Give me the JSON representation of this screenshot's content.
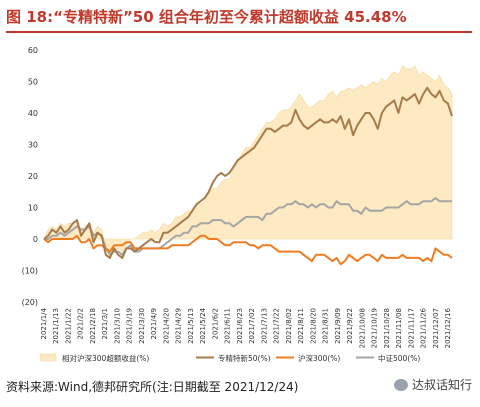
{
  "title": "图 18:“专精特新”50 组合年初至今累计超额收益 45.48%",
  "source": "资料来源:Wind,德邦研究所(注:日期截至 2021/12/24)",
  "watermark": "达叔话知行",
  "chart_data": {
    "type": "area",
    "title": "图 18:“专精特新”50 组合年初至今累计超额收益 45.48%",
    "xlabel": "",
    "ylabel": "",
    "ylim": [
      -20,
      60
    ],
    "y_ticks": [
      60,
      50,
      40,
      30,
      20,
      10,
      0,
      -10,
      -20
    ],
    "y_tick_labels": [
      "60",
      "50",
      "40",
      "30",
      "20",
      "10",
      "0",
      "(10)",
      "(20)"
    ],
    "x_tick_labels": [
      "2021/1/4",
      "2021/1/13",
      "2021/1/22",
      "2021/2/2",
      "2021/2/18",
      "2021/3/1",
      "2021/3/10",
      "2021/3/19",
      "2021/3/30",
      "2021/4/9",
      "2021/4/20",
      "2021/4/29",
      "2021/5/13",
      "2021/5/24",
      "2021/6/2",
      "2021/6/11",
      "2021/6/23",
      "2021/7/02",
      "2021/7/13",
      "2021/7/22",
      "2021/8/02",
      "2021/8/11",
      "2021/8/20",
      "2021/8/31",
      "2021/9/09",
      "2021/9/22",
      "2021/10/08",
      "2021/10/19",
      "2021/10/28",
      "2021/11/08",
      "2021/11/17",
      "2021/11/26",
      "2021/12/07",
      "2021/12/16"
    ],
    "grid": false,
    "legend_position": "bottom",
    "colors": {
      "excess": "#fde9c2",
      "excess_edge": "#f6d79a",
      "zjtx": "#a87b4a",
      "hs300": "#ee7d23",
      "zz500": "#a6a6a6"
    },
    "series": [
      {
        "name": "相对沪深300超额收益(%)",
        "style": "area",
        "values": [
          0,
          3,
          4,
          3,
          5,
          4,
          5,
          5,
          6,
          3,
          4,
          5,
          2,
          4,
          3,
          -3,
          -5,
          -4,
          -3,
          -4,
          -2,
          0,
          0,
          1,
          2,
          2,
          3,
          2,
          3,
          5,
          4,
          5,
          7,
          7,
          8,
          9,
          9,
          11,
          11,
          12,
          15,
          16,
          16,
          18,
          19,
          19,
          22,
          24,
          27,
          29,
          29,
          31,
          33,
          35,
          37,
          37,
          38,
          40,
          41,
          41,
          42,
          44,
          46,
          44,
          42,
          42,
          43,
          44,
          44,
          46,
          47,
          45,
          47,
          47,
          48,
          47,
          48,
          49,
          48,
          49,
          50,
          49,
          51,
          50,
          52,
          53,
          52,
          55,
          54,
          54,
          55,
          52,
          53,
          52,
          51,
          50,
          52,
          49,
          48,
          46
        ]
      },
      {
        "name": "专精特新50(%)",
        "style": "line",
        "values": [
          0,
          1,
          3,
          2,
          4,
          2,
          3,
          5,
          6,
          1,
          3,
          5,
          -1,
          2,
          1,
          -5,
          -6,
          -3,
          -5,
          -6,
          -3,
          -3,
          -4,
          -3,
          -2,
          -1,
          0,
          -1,
          -1,
          2,
          2,
          3,
          4,
          5,
          6,
          7,
          9,
          11,
          12,
          13,
          15,
          18,
          20,
          21,
          20,
          21,
          23,
          25,
          26,
          27,
          28,
          29,
          31,
          33,
          35,
          35,
          34,
          35,
          36,
          36,
          37,
          41,
          38,
          36,
          35,
          36,
          37,
          38,
          37,
          37,
          38,
          37,
          39,
          35,
          38,
          33,
          36,
          38,
          40,
          40,
          38,
          35,
          40,
          42,
          43,
          44,
          40,
          45,
          44,
          45,
          46,
          43,
          46,
          48,
          46,
          45,
          47,
          44,
          43,
          39
        ]
      },
      {
        "name": "沪深300(%)",
        "style": "line",
        "values": [
          0,
          -1,
          0,
          0,
          0,
          0,
          0,
          0,
          1,
          -1,
          -1,
          0,
          -3,
          -2,
          -2,
          -3,
          -4,
          -2,
          -2,
          -2,
          -1,
          -1,
          -3,
          -3,
          -3,
          -3,
          -3,
          -3,
          -3,
          -3,
          -3,
          -2,
          -2,
          -2,
          -2,
          -2,
          -1,
          0,
          1,
          1,
          0,
          0,
          0,
          -1,
          -2,
          -2,
          -1,
          -1,
          -1,
          -1,
          -2,
          -2,
          -3,
          -2,
          -2,
          -2,
          -3,
          -4,
          -4,
          -4,
          -4,
          -4,
          -4,
          -5,
          -6,
          -7,
          -5,
          -5,
          -5,
          -6,
          -7,
          -6,
          -8,
          -7,
          -5,
          -6,
          -7,
          -6,
          -5,
          -5,
          -6,
          -7,
          -5,
          -6,
          -6,
          -6,
          -6,
          -5,
          -6,
          -6,
          -6,
          -6,
          -7,
          -6,
          -7,
          -3,
          -4,
          -5,
          -5,
          -6
        ]
      },
      {
        "name": "中证500(%)",
        "style": "line",
        "values": [
          0,
          0,
          1,
          1,
          2,
          1,
          2,
          3,
          4,
          3,
          3,
          4,
          1,
          2,
          1,
          -3,
          -5,
          -4,
          -4,
          -5,
          -3,
          -2,
          -4,
          -4,
          -3,
          -3,
          -3,
          -3,
          -3,
          -2,
          -1,
          0,
          1,
          1,
          2,
          2,
          4,
          4,
          5,
          5,
          5,
          6,
          6,
          6,
          5,
          5,
          4,
          5,
          6,
          7,
          7,
          7,
          7,
          6,
          8,
          8,
          9,
          10,
          10,
          11,
          11,
          12,
          11,
          11,
          10,
          11,
          10,
          11,
          11,
          10,
          10,
          12,
          11,
          11,
          11,
          9,
          9,
          8,
          10,
          9,
          9,
          9,
          9,
          10,
          10,
          10,
          10,
          11,
          12,
          11,
          11,
          11,
          12,
          12,
          12,
          13,
          12,
          12,
          12,
          12
        ]
      }
    ]
  }
}
